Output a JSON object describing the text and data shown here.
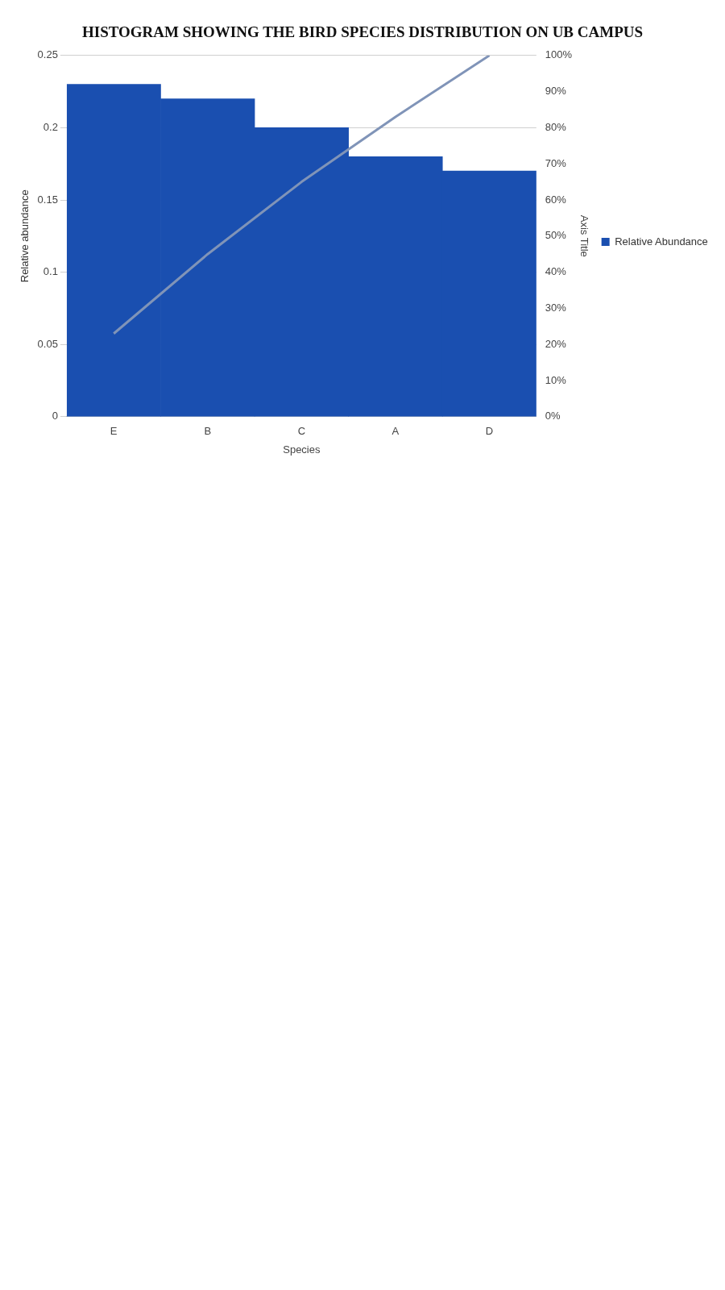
{
  "chart_data": {
    "type": "bar",
    "title": "HISTOGRAM SHOWING THE BIRD SPECIES DISTRIBUTION ON UB CAMPUS",
    "xlabel": "Species",
    "ylabel": "Relative abundance",
    "y2label": "Axis Title",
    "categories": [
      "E",
      "B",
      "C",
      "A",
      "D"
    ],
    "series": [
      {
        "name": "Relative Abundance",
        "color": "#1a4fb0",
        "values": [
          0.23,
          0.22,
          0.2,
          0.18,
          0.17
        ]
      },
      {
        "type": "line",
        "axis": "y2",
        "color": "#8094b8",
        "marker": "none",
        "values": [
          23,
          45,
          65,
          83,
          100
        ]
      }
    ],
    "ylim": [
      0,
      0.25
    ],
    "yticks": [
      0,
      0.05,
      0.1,
      0.15,
      0.2,
      0.25
    ],
    "y2lim": [
      0,
      100
    ],
    "y2ticks": [
      {
        "value": 0,
        "label": "0%"
      },
      {
        "value": 10,
        "label": "10%"
      },
      {
        "value": 20,
        "label": "20%"
      },
      {
        "value": 30,
        "label": "30%"
      },
      {
        "value": 40,
        "label": "40%"
      },
      {
        "value": 50,
        "label": "50%"
      },
      {
        "value": 60,
        "label": "60%"
      },
      {
        "value": 70,
        "label": "70%"
      },
      {
        "value": 80,
        "label": "80%"
      },
      {
        "value": 90,
        "label": "90%"
      },
      {
        "value": 100,
        "label": "100%"
      }
    ],
    "grid": "y",
    "legend": "right"
  }
}
